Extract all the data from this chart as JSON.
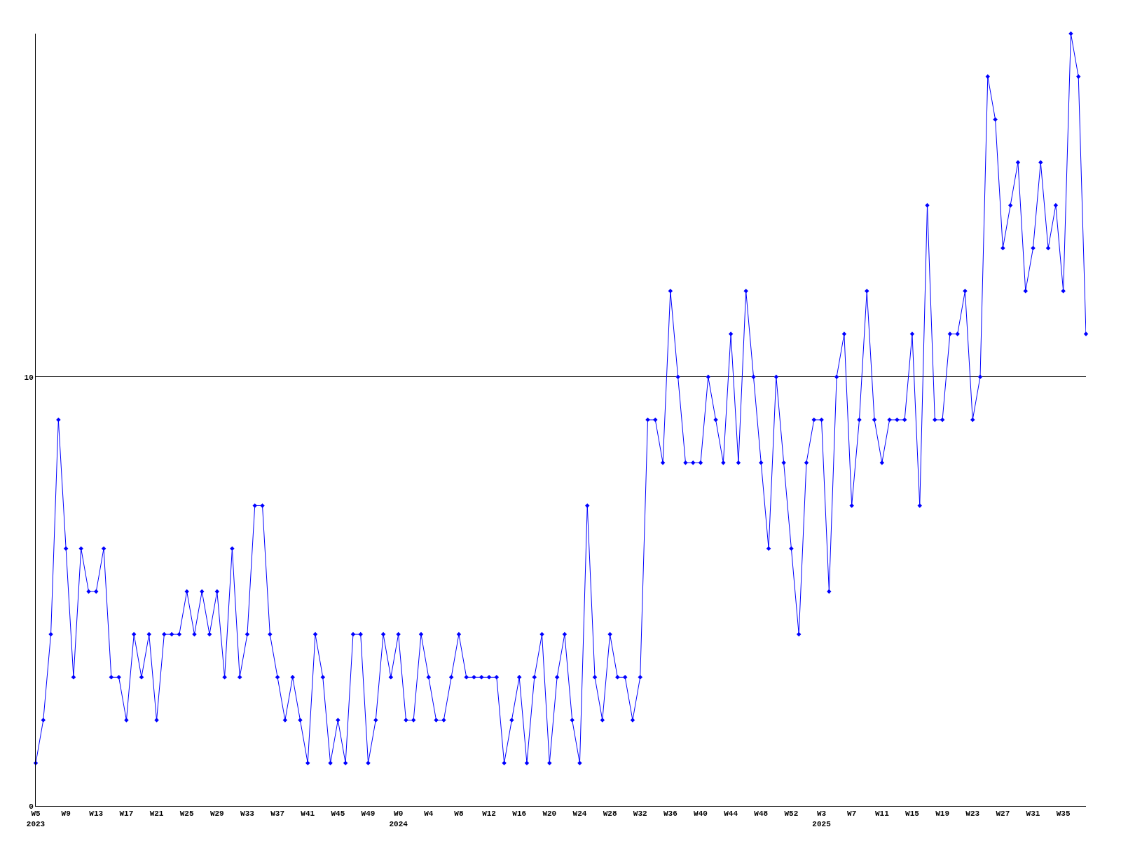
{
  "chart_data": {
    "type": "line",
    "categories": [
      "W5\n2023",
      null,
      null,
      null,
      "W9",
      null,
      null,
      null,
      "W13",
      null,
      null,
      null,
      "W17",
      null,
      null,
      null,
      "W21",
      null,
      null,
      null,
      "W25",
      null,
      null,
      null,
      "W29",
      null,
      null,
      null,
      "W33",
      null,
      null,
      null,
      "W37",
      null,
      null,
      null,
      "W41",
      null,
      null,
      null,
      "W45",
      null,
      null,
      null,
      "W49",
      null,
      null,
      null,
      "W0\n2024",
      null,
      null,
      null,
      "W4",
      null,
      null,
      null,
      "W8",
      null,
      null,
      null,
      "W12",
      null,
      null,
      null,
      "W16",
      null,
      null,
      null,
      "W20",
      null,
      null,
      null,
      "W24",
      null,
      null,
      null,
      "W28",
      null,
      null,
      null,
      "W32",
      null,
      null,
      null,
      "W36",
      null,
      null,
      null,
      "W40",
      null,
      null,
      null,
      "W44",
      null,
      null,
      null,
      "W48",
      null,
      null,
      null,
      "W52",
      null,
      null,
      null,
      "W3\n2025",
      null,
      null,
      null,
      "W7",
      null,
      null,
      null,
      "W11",
      null,
      null,
      null,
      "W15",
      null,
      null,
      null,
      "W19",
      null,
      null,
      null,
      "W23",
      null,
      null,
      null,
      "W27",
      null,
      null,
      null,
      "W31",
      null,
      null,
      null,
      "W35",
      null,
      null,
      null
    ],
    "series": [
      {
        "color": "#0000ff",
        "values": [
          1,
          2,
          4,
          9,
          6,
          3,
          6,
          5,
          5,
          6,
          3,
          3,
          2,
          4,
          3,
          4,
          2,
          4,
          4,
          4,
          5,
          4,
          5,
          4,
          5,
          3,
          6,
          3,
          4,
          7,
          7,
          4,
          3,
          2,
          3,
          2,
          1,
          4,
          3,
          1,
          2,
          1,
          4,
          4,
          1,
          2,
          4,
          3,
          4,
          2,
          2,
          4,
          3,
          2,
          2,
          3,
          4,
          3,
          3,
          3,
          3,
          3,
          1,
          2,
          3,
          1,
          3,
          4,
          1,
          3,
          4,
          2,
          1,
          7,
          3,
          2,
          4,
          3,
          3,
          2,
          3,
          9,
          9,
          8,
          12,
          10,
          8,
          8,
          8,
          10,
          9,
          8,
          11,
          8,
          12,
          10,
          8,
          6,
          10,
          8,
          6,
          4,
          8,
          9,
          9,
          5,
          10,
          11,
          7,
          9,
          12,
          9,
          8,
          9,
          9,
          9,
          11,
          7,
          14,
          9,
          9,
          11,
          11,
          12,
          9,
          10,
          17,
          16,
          13,
          14,
          15,
          12,
          13,
          15,
          13,
          14,
          12,
          18,
          17,
          11
        ]
      }
    ],
    "ylim": [
      0,
      18
    ],
    "yticks": [
      0,
      10
    ],
    "grid": "y",
    "marker": "diamond",
    "line_style": "solid"
  }
}
